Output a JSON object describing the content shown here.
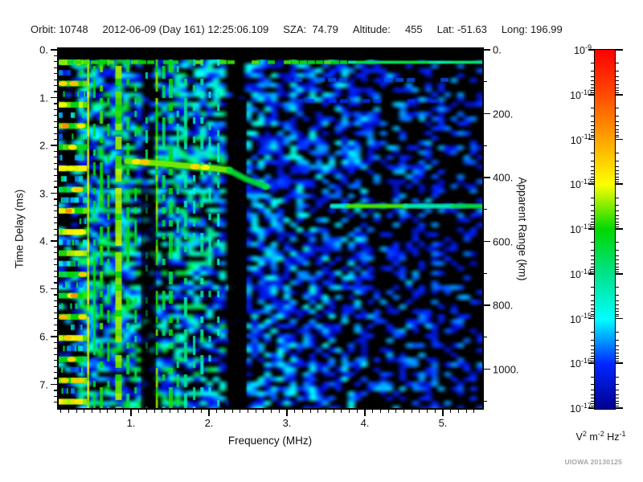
{
  "header": {
    "segments": [
      "Orbit: 10748",
      "2012-06-09 (Day 161) 12:25:06.109",
      "SZA:  74.79",
      "Altitude:     455",
      "Lat: -51.63",
      "Long: 196.99"
    ]
  },
  "watermark": "UIOWA 20130125",
  "chart_data": {
    "type": "heatmap",
    "subtype": "radar-sounder-ionogram-spectrogram",
    "xlabel": "Frequency (MHz)",
    "ylabel": "Time Delay (ms)",
    "y2label": "Apparent Range (km)",
    "x_range_mhz": [
      0.07,
      5.5
    ],
    "x_tick_labels": [
      "1.",
      "2.",
      "3.",
      "4.",
      "5."
    ],
    "x_tick_values": [
      1,
      2,
      3,
      4,
      5
    ],
    "x_minor_step_mhz": 0.1,
    "y_range_ms": [
      0,
      7.51
    ],
    "y_tick_labels": [
      "0.",
      "1.",
      "2.",
      "3.",
      "4.",
      "5.",
      "6.",
      "7."
    ],
    "y_tick_values": [
      0,
      1,
      2,
      3,
      4,
      5,
      6,
      7
    ],
    "y_minor_step_ms": 0.125,
    "y2_range_km": [
      0,
      1122
    ],
    "y2_tick_labels": [
      "0.",
      "200.",
      "400.",
      "600.",
      "800.",
      "1000."
    ],
    "y2_tick_values": [
      0,
      200,
      400,
      600,
      800,
      1000
    ],
    "y2_minor_step_km": 100,
    "grid": false,
    "background": "#000000",
    "colorbar": {
      "exponents": [
        -9,
        -10,
        -11,
        -12,
        -13,
        -14,
        -15,
        -16,
        -17
      ],
      "units_parts": [
        [
          "V",
          "2"
        ],
        [
          "m",
          "-2"
        ],
        [
          "Hz",
          "-1"
        ]
      ],
      "stops": [
        [
          0.0,
          "#000090"
        ],
        [
          0.125,
          "#0026ff"
        ],
        [
          0.25,
          "#00ffff"
        ],
        [
          0.375,
          "#00e28c"
        ],
        [
          0.5,
          "#00d800"
        ],
        [
          0.625,
          "#fdff00"
        ],
        [
          0.75,
          "#ffa400"
        ],
        [
          0.875,
          "#ff4a00"
        ],
        [
          1.0,
          "#fe0000"
        ]
      ]
    },
    "features": {
      "transmit_pulse_delay_ms": 0.26,
      "left_band": {
        "f_max_mhz": 0.43,
        "row_period_ms": 0.222,
        "bright_v": [
          0.42,
          0.6
        ]
      },
      "plasma_oscillation_harmonics": [
        {
          "f": 0.45,
          "w": 2.5,
          "v": 0.6,
          "duty": 0.97
        },
        {
          "f": 0.53,
          "w": 3,
          "v": 0.45,
          "duty": 0.55
        },
        {
          "f": 0.62,
          "w": 4,
          "v": 0.5,
          "duty": 0.6
        },
        {
          "f": 0.71,
          "w": 3,
          "v": 0.47,
          "duty": 0.55
        },
        {
          "f": 0.84,
          "w": 8,
          "v": 0.55,
          "duty": 0.85
        },
        {
          "f": 0.96,
          "w": 4,
          "v": 0.45,
          "duty": 0.5
        },
        {
          "f": 1.06,
          "w": 3,
          "v": 0.43,
          "duty": 0.45
        },
        {
          "f": 1.2,
          "w": 3,
          "v": 0.4,
          "duty": 0.35
        },
        {
          "f": 1.33,
          "w": 3,
          "v": 0.53,
          "duty": 0.7
        },
        {
          "f": 1.42,
          "w": 4,
          "v": 0.42,
          "duty": 0.45
        },
        {
          "f": 1.51,
          "w": 5,
          "v": 0.47,
          "duty": 0.5
        },
        {
          "f": 1.6,
          "w": 3,
          "v": 0.38,
          "duty": 0.4
        },
        {
          "f": 1.7,
          "w": 4,
          "v": 0.36,
          "duty": 0.4
        },
        {
          "f": 1.81,
          "w": 3,
          "v": 0.34,
          "duty": 0.35
        },
        {
          "f": 1.91,
          "w": 4,
          "v": 0.35,
          "duty": 0.35
        },
        {
          "f": 2.01,
          "w": 3,
          "v": 0.33,
          "duty": 0.3
        },
        {
          "f": 2.12,
          "w": 3,
          "v": 0.31,
          "duty": 0.3
        }
      ],
      "rfi_gaps_mhz": [
        {
          "f0": 2.25,
          "f1": 2.48,
          "from_ms": 1.03,
          "alpha": 0.9
        },
        {
          "f0": 1.13,
          "f1": 1.32,
          "from_ms": 2.84,
          "alpha": 0.55
        }
      ],
      "ionosphere_echo": {
        "trace_mhz_ms": [
          [
            0.95,
            2.33
          ],
          [
            1.41,
            2.38
          ],
          [
            1.79,
            2.44
          ],
          [
            2.07,
            2.48
          ],
          [
            2.26,
            2.52
          ]
        ],
        "bright_spots_mhz_ms_v": [
          [
            1.07,
            2.34,
            0.66
          ],
          [
            1.18,
            2.35,
            0.7
          ],
          [
            1.82,
            2.44,
            0.68
          ],
          [
            1.95,
            2.46,
            0.62
          ]
        ],
        "hook_mhz_ms": [
          [
            2.26,
            2.52
          ],
          [
            2.47,
            2.7
          ],
          [
            2.73,
            2.86
          ]
        ]
      },
      "ground_echo": {
        "delay_ms": 3.27,
        "segments_mhz_v": [
          [
            3.58,
            3.78,
            0.3
          ],
          [
            3.78,
            4.52,
            0.54
          ],
          [
            4.52,
            5.12,
            0.34
          ],
          [
            5.12,
            5.5,
            0.44
          ]
        ]
      },
      "noise_regions_mhz_density_vmax": [
        [
          0.07,
          0.36,
          0.25,
          0.3
        ],
        [
          0.36,
          1.13,
          0.8,
          0.46
        ],
        [
          1.13,
          1.32,
          0.35,
          0.3
        ],
        [
          1.32,
          2.25,
          0.72,
          0.38
        ],
        [
          2.25,
          2.48,
          0.05,
          0.15
        ],
        [
          2.48,
          3.34,
          0.62,
          0.3
        ],
        [
          3.34,
          4.06,
          0.5,
          0.26
        ],
        [
          4.06,
          4.83,
          0.38,
          0.22
        ],
        [
          4.83,
          5.5,
          0.3,
          0.2
        ]
      ],
      "faint_streaks": [
        {
          "t_ms": 0.63,
          "f0": 2.95,
          "f1": 5.0,
          "v": 0.15
        },
        {
          "t_ms": 1.07,
          "f0": 3.1,
          "f1": 4.9,
          "v": 0.13
        }
      ]
    }
  }
}
